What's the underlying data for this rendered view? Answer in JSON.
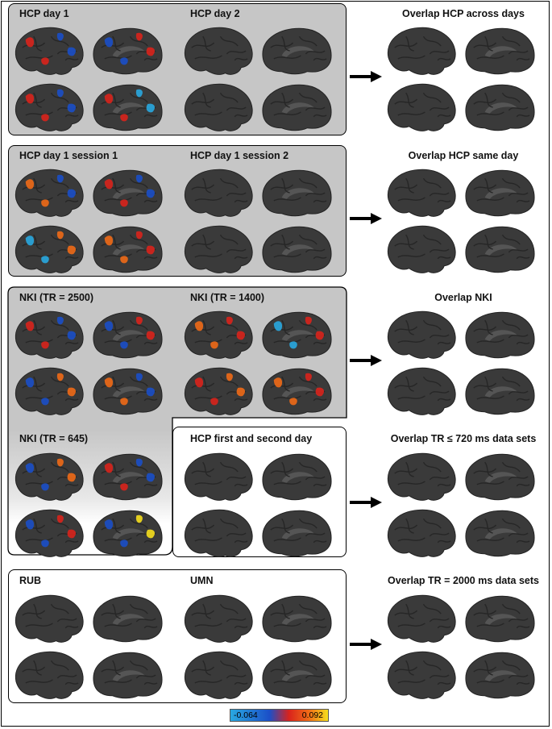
{
  "colorbar": {
    "min": "-0.064",
    "max": "0.092",
    "colors": [
      "#29a8e0",
      "#1b4fc8",
      "#d9231c",
      "#ef6a17",
      "#f6df1e"
    ]
  },
  "rows": [
    {
      "left_title": "HCP day 1",
      "right_title": "HCP day 2",
      "overlap_title": "Overlap HCP across days"
    },
    {
      "left_title": "HCP day 1 session 1",
      "right_title": "HCP day 1 session 2",
      "overlap_title": "Overlap HCP same day"
    },
    {
      "left_title": "NKI (TR = 2500)",
      "right_title": "NKI (TR = 1400)",
      "overlap_title": "Overlap NKI"
    },
    {
      "left_title": "NKI (TR = 645)",
      "right_title": "HCP first and second day",
      "overlap_title": "Overlap TR ≤ 720 ms data sets"
    },
    {
      "left_title": "RUB",
      "right_title": "UMN",
      "overlap_title": "Overlap TR = 2000 ms data sets"
    }
  ],
  "colors": {
    "brain": "#3a3a3a",
    "panel_gray": "#c6c6c6",
    "positive": "#d9231c",
    "negative": "#1b4fc8"
  }
}
